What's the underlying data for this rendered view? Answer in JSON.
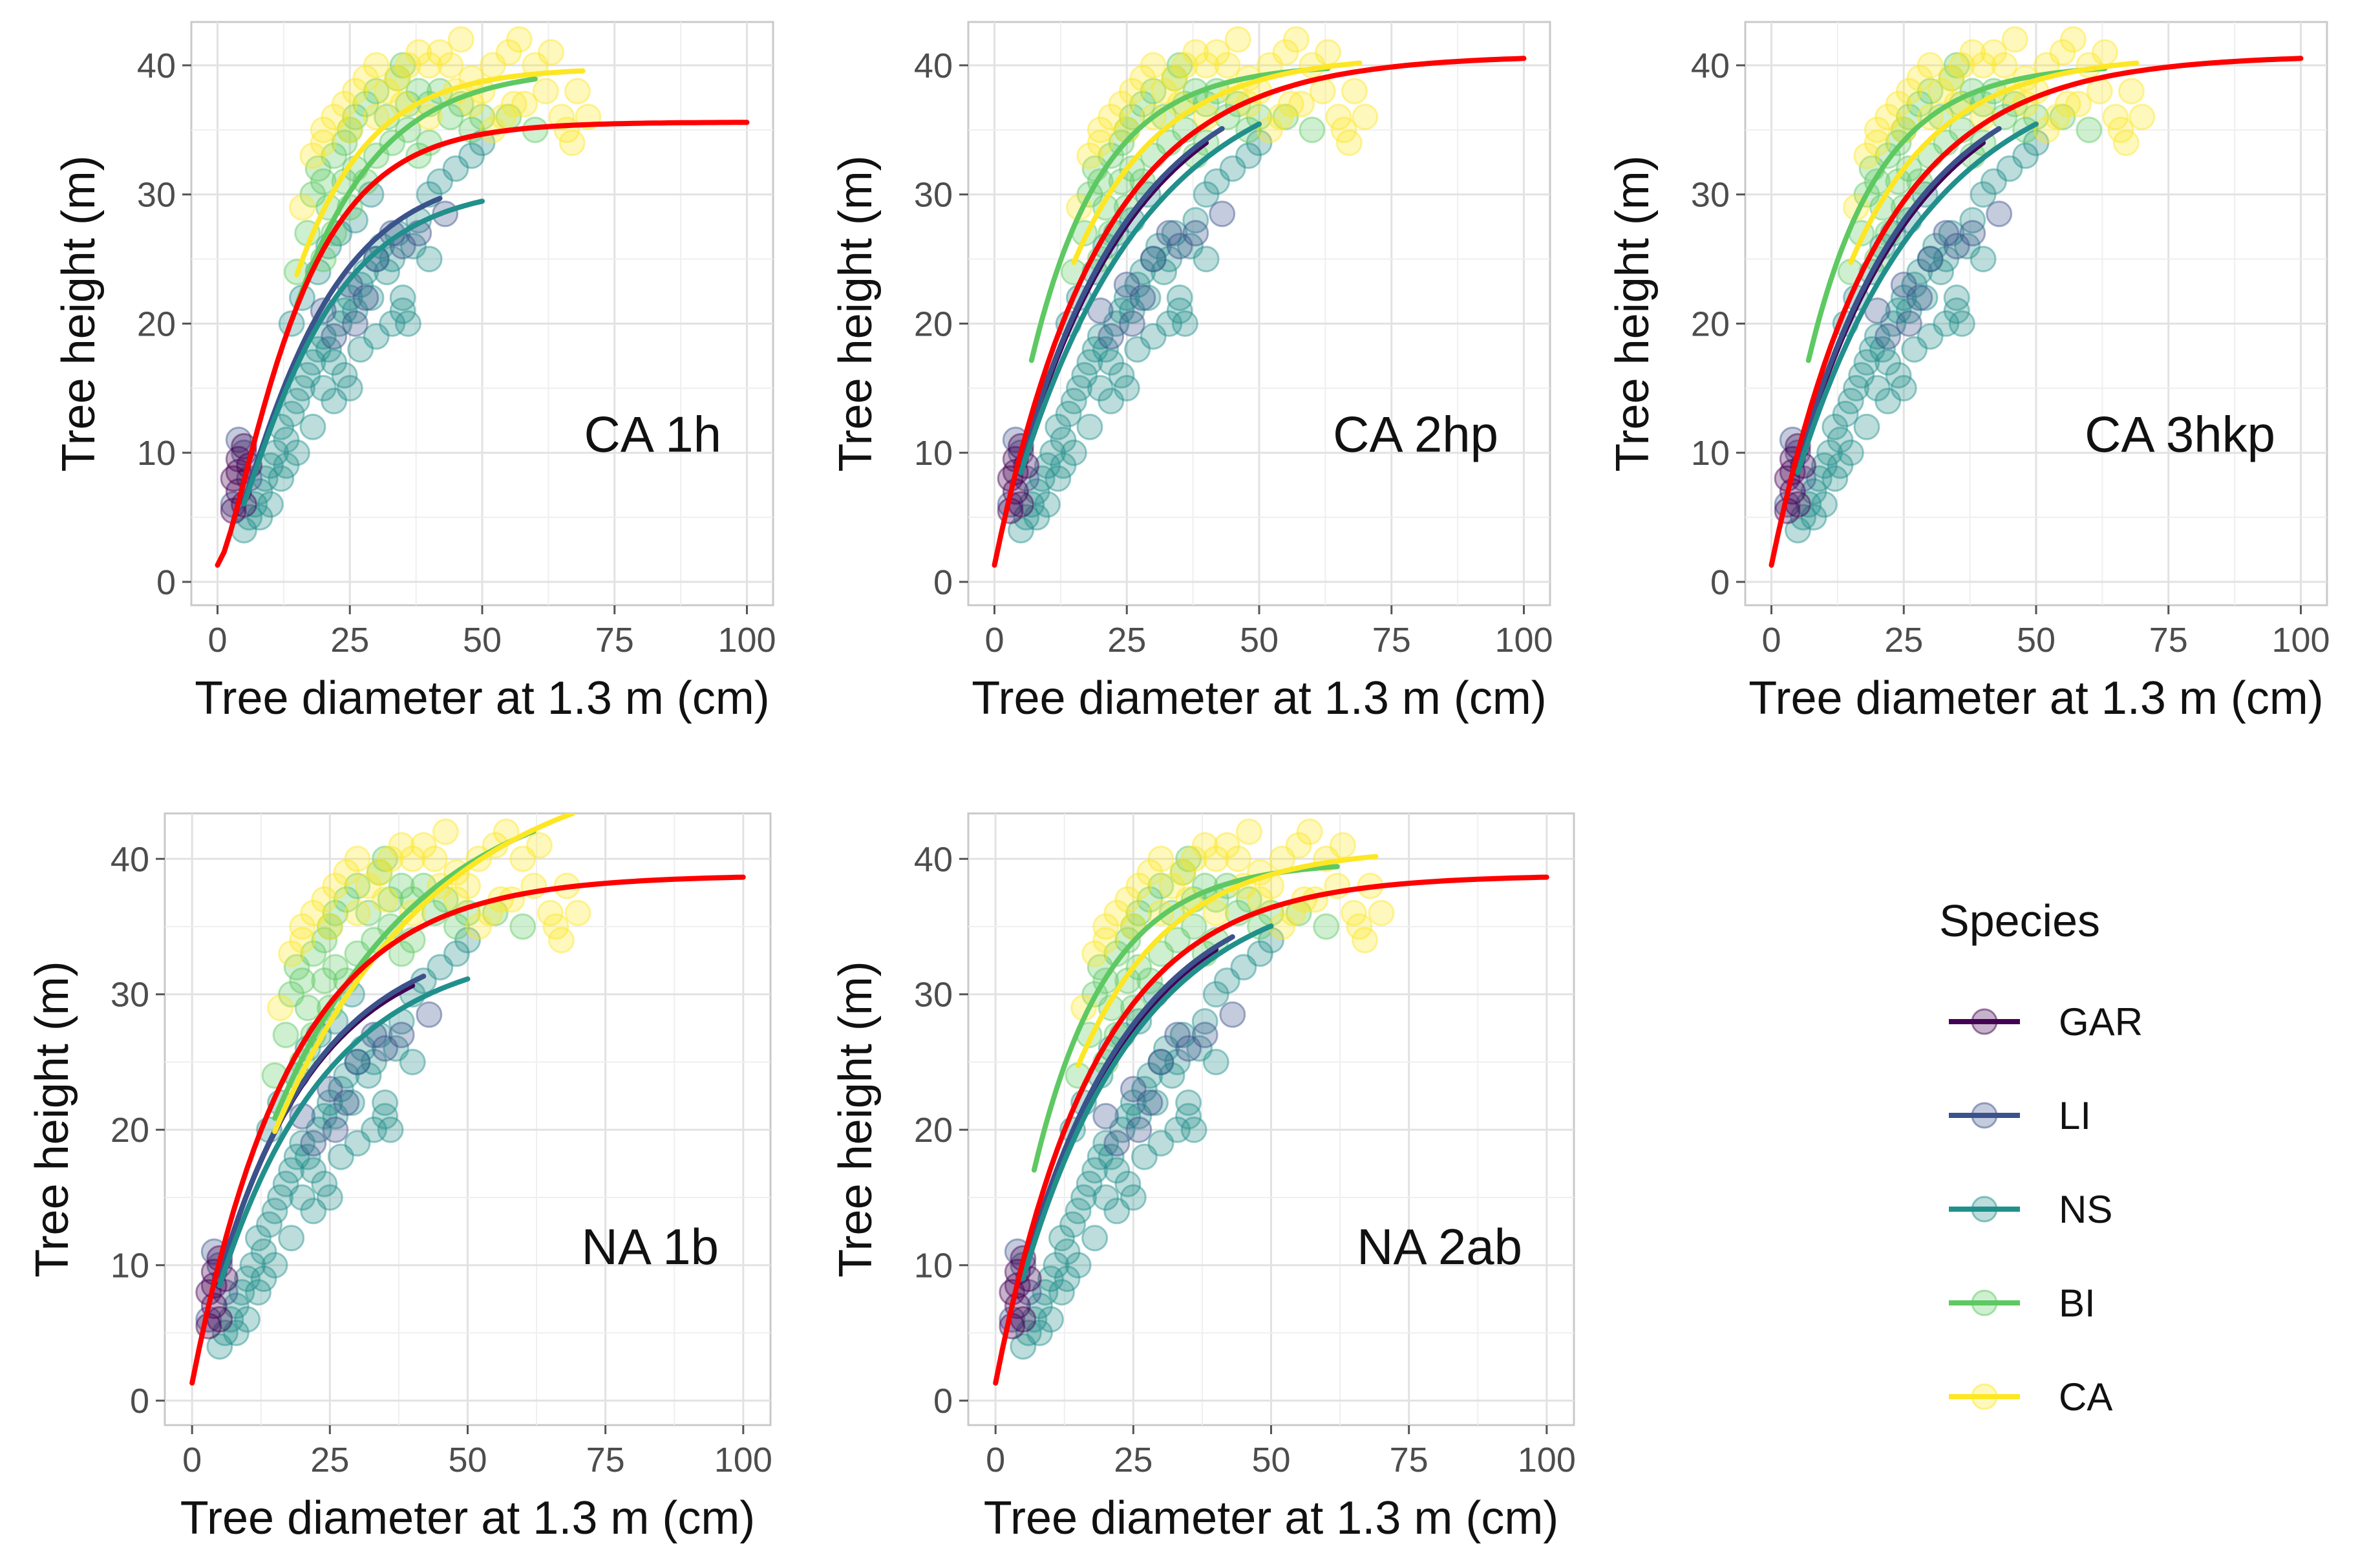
{
  "figure": {
    "xlabel": "Tree diameter at 1.3 m (cm)",
    "ylabel": "Tree height (m)",
    "x_ticks": [
      "0",
      "25",
      "50",
      "75",
      "100"
    ],
    "y_ticks": [
      "0",
      "10",
      "20",
      "30",
      "40"
    ],
    "legend_title": "Species"
  },
  "chart_data": {
    "type": "scatter",
    "xlim": [
      0,
      100
    ],
    "ylim": [
      0,
      42
    ],
    "x_tick_values": [
      0,
      25,
      50,
      75,
      100
    ],
    "y_tick_values": [
      0,
      10,
      20,
      30,
      40
    ],
    "grid": true,
    "legend_placement": "right",
    "species": [
      {
        "name": "GAR",
        "color": "#440154"
      },
      {
        "name": "LI",
        "color": "#3b528b"
      },
      {
        "name": "NS",
        "color": "#21908c"
      },
      {
        "name": "BI",
        "color": "#5ec962"
      },
      {
        "name": "CA",
        "color": "#fde725"
      }
    ],
    "overall_fit_color": "#ff0000",
    "observations": {
      "GAR": [
        [
          3,
          8
        ],
        [
          4,
          9.5
        ],
        [
          5,
          10.5
        ],
        [
          4,
          7
        ],
        [
          3,
          5.5
        ],
        [
          5,
          6
        ],
        [
          6,
          9
        ],
        [
          4,
          8.5
        ]
      ],
      "LI": [
        [
          4,
          11
        ],
        [
          5,
          10
        ],
        [
          3,
          6
        ],
        [
          6,
          8
        ],
        [
          25,
          23
        ],
        [
          28,
          22
        ],
        [
          30,
          25
        ],
        [
          33,
          27
        ],
        [
          38,
          27
        ],
        [
          43,
          28.5
        ],
        [
          20,
          21
        ],
        [
          22,
          19
        ],
        [
          26,
          20
        ],
        [
          35,
          26
        ]
      ],
      "NS": [
        [
          5,
          4
        ],
        [
          6,
          5
        ],
        [
          7,
          6
        ],
        [
          8,
          7
        ],
        [
          9,
          8
        ],
        [
          10,
          9
        ],
        [
          11,
          10
        ],
        [
          12,
          12
        ],
        [
          13,
          11
        ],
        [
          14,
          13
        ],
        [
          15,
          14
        ],
        [
          16,
          15
        ],
        [
          17,
          16
        ],
        [
          18,
          17
        ],
        [
          19,
          18
        ],
        [
          20,
          19
        ],
        [
          21,
          18
        ],
        [
          22,
          17
        ],
        [
          23,
          20
        ],
        [
          24,
          21
        ],
        [
          25,
          22
        ],
        [
          26,
          21
        ],
        [
          27,
          23
        ],
        [
          28,
          24
        ],
        [
          29,
          22
        ],
        [
          30,
          25
        ],
        [
          31,
          26
        ],
        [
          32,
          24
        ],
        [
          33,
          25
        ],
        [
          34,
          27
        ],
        [
          35,
          21
        ],
        [
          36,
          20
        ],
        [
          37,
          26
        ],
        [
          38,
          28
        ],
        [
          40,
          30
        ],
        [
          42,
          31
        ],
        [
          45,
          32
        ],
        [
          48,
          33
        ],
        [
          50,
          34
        ],
        [
          8,
          5
        ],
        [
          12,
          8
        ],
        [
          15,
          10
        ],
        [
          18,
          12
        ],
        [
          20,
          15
        ],
        [
          24,
          16
        ],
        [
          27,
          18
        ],
        [
          30,
          19
        ],
        [
          35,
          22
        ],
        [
          14,
          20
        ],
        [
          16,
          22
        ],
        [
          19,
          24
        ],
        [
          21,
          26
        ],
        [
          23,
          27
        ],
        [
          26,
          28
        ],
        [
          29,
          30
        ],
        [
          22,
          14
        ],
        [
          25,
          15
        ],
        [
          33,
          20
        ],
        [
          40,
          25
        ],
        [
          10,
          6
        ],
        [
          13,
          9
        ]
      ],
      "BI": [
        [
          15,
          24
        ],
        [
          17,
          27
        ],
        [
          18,
          30
        ],
        [
          19,
          32
        ],
        [
          20,
          31
        ],
        [
          22,
          33
        ],
        [
          24,
          34
        ],
        [
          25,
          35
        ],
        [
          26,
          36
        ],
        [
          28,
          37
        ],
        [
          30,
          38
        ],
        [
          32,
          36
        ],
        [
          34,
          39
        ],
        [
          36,
          37
        ],
        [
          38,
          38
        ],
        [
          40,
          37
        ],
        [
          42,
          38
        ],
        [
          44,
          36
        ],
        [
          46,
          37
        ],
        [
          48,
          35
        ],
        [
          50,
          36
        ],
        [
          20,
          25
        ],
        [
          22,
          27
        ],
        [
          25,
          29
        ],
        [
          28,
          31
        ],
        [
          30,
          33
        ],
        [
          33,
          34
        ],
        [
          36,
          35
        ],
        [
          38,
          33
        ],
        [
          40,
          34
        ],
        [
          26,
          32
        ],
        [
          24,
          31
        ],
        [
          21,
          29
        ],
        [
          35,
          40
        ],
        [
          60,
          35
        ],
        [
          55,
          36
        ]
      ],
      "CA": [
        [
          16,
          29
        ],
        [
          18,
          33
        ],
        [
          20,
          35
        ],
        [
          22,
          36
        ],
        [
          24,
          37
        ],
        [
          26,
          38
        ],
        [
          28,
          39
        ],
        [
          30,
          40
        ],
        [
          32,
          38
        ],
        [
          34,
          39
        ],
        [
          36,
          40
        ],
        [
          38,
          41
        ],
        [
          40,
          40
        ],
        [
          42,
          41
        ],
        [
          44,
          40
        ],
        [
          46,
          42
        ],
        [
          48,
          39
        ],
        [
          50,
          38
        ],
        [
          52,
          40
        ],
        [
          55,
          41
        ],
        [
          57,
          42
        ],
        [
          60,
          40
        ],
        [
          62,
          38
        ],
        [
          65,
          36
        ],
        [
          68,
          38
        ],
        [
          70,
          36
        ],
        [
          66,
          35
        ],
        [
          58,
          37
        ],
        [
          54,
          36
        ],
        [
          45,
          38
        ],
        [
          40,
          36
        ],
        [
          35,
          37
        ],
        [
          30,
          36
        ],
        [
          25,
          35
        ],
        [
          20,
          34
        ],
        [
          48,
          37
        ],
        [
          52,
          35
        ],
        [
          56,
          37
        ],
        [
          63,
          41
        ],
        [
          67,
          34
        ]
      ]
    },
    "panels": [
      {
        "label": "CA 1h",
        "overall": {
          "a": 34.3,
          "k": 0.08,
          "p": 1.5
        },
        "curves": [
          {
            "species": "GAR",
            "xrange": [
              3,
              7
            ],
            "a": 34.3,
            "k": 0.08,
            "p": 1.5
          },
          {
            "species": "LI",
            "xrange": [
              5,
              42
            ],
            "a": 30.8,
            "k": 0.07,
            "p": 1.5
          },
          {
            "species": "NS",
            "xrange": [
              5,
              50
            ],
            "a": 29.5,
            "k": 0.07,
            "p": 1.5
          },
          {
            "species": "BI",
            "xrange": [
              15,
              60
            ],
            "a": 38.5,
            "k": 0.07,
            "p": 1.5
          },
          {
            "species": "CA",
            "xrange": [
              15,
              69
            ],
            "a": 38.5,
            "k": 0.08,
            "p": 1.5
          }
        ]
      },
      {
        "label": "CA 2hp",
        "overall": {
          "a": 39.5,
          "k": 0.05,
          "p": 1.0
        },
        "curves": [
          {
            "species": "GAR",
            "xrange": [
              5,
              40
            ],
            "a": 39.5,
            "k": 0.044,
            "p": 1.0
          },
          {
            "species": "LI",
            "xrange": [
              5,
              43
            ],
            "a": 39.5,
            "k": 0.045,
            "p": 1.0
          },
          {
            "species": "NS",
            "xrange": [
              5,
              50
            ],
            "a": 39.5,
            "k": 0.04,
            "p": 1.0
          },
          {
            "species": "BI",
            "xrange": [
              7,
              63
            ],
            "a": 38.8,
            "k": 0.075,
            "p": 1.0
          },
          {
            "species": "CA",
            "xrange": [
              15,
              69
            ],
            "a": 39.5,
            "k": 0.06,
            "p": 1.0
          }
        ]
      },
      {
        "label": "CA 3hkp",
        "overall": {
          "a": 39.5,
          "k": 0.05,
          "p": 1.0
        },
        "curves": [
          {
            "species": "GAR",
            "xrange": [
              5,
              40
            ],
            "a": 39.5,
            "k": 0.044,
            "p": 1.0
          },
          {
            "species": "LI",
            "xrange": [
              5,
              43
            ],
            "a": 39.5,
            "k": 0.045,
            "p": 1.0
          },
          {
            "species": "NS",
            "xrange": [
              5,
              50
            ],
            "a": 39.5,
            "k": 0.04,
            "p": 1.0
          },
          {
            "species": "BI",
            "xrange": [
              7,
              63
            ],
            "a": 38.8,
            "k": 0.075,
            "p": 1.0
          },
          {
            "species": "CA",
            "xrange": [
              15,
              69
            ],
            "a": 39.5,
            "k": 0.06,
            "p": 1.0
          }
        ]
      },
      {
        "label": "NA 1b",
        "overall": {
          "a": 37.5,
          "k": 0.055,
          "p": 1.0
        },
        "curves": [
          {
            "species": "GAR",
            "xrange": [
              5,
              40
            ],
            "a": 33.0,
            "k": 0.055,
            "p": 1.0
          },
          {
            "species": "LI",
            "xrange": [
              5,
              42
            ],
            "a": 33.5,
            "k": 0.054,
            "p": 1.0
          },
          {
            "species": "NS",
            "xrange": [
              5,
              50
            ],
            "a": 32.5,
            "k": 0.05,
            "p": 1.0
          },
          {
            "species": "BI",
            "xrange": [
              15,
              62
            ],
            "a": 45.0,
            "k": 0.038,
            "p": 1.0
          },
          {
            "species": "CA",
            "xrange": [
              15,
              69
            ],
            "a": 46.5,
            "k": 0.034,
            "p": 1.0
          }
        ]
      },
      {
        "label": "NA 2ab",
        "overall": {
          "a": 37.5,
          "k": 0.055,
          "p": 1.0
        },
        "curves": [
          {
            "species": "GAR",
            "xrange": [
              5,
              40
            ],
            "a": 37.5,
            "k": 0.048,
            "p": 1.0
          },
          {
            "species": "LI",
            "xrange": [
              5,
              43
            ],
            "a": 37.5,
            "k": 0.049,
            "p": 1.0
          },
          {
            "species": "NS",
            "xrange": [
              5,
              50
            ],
            "a": 37.5,
            "k": 0.046,
            "p": 1.0
          },
          {
            "species": "BI",
            "xrange": [
              7,
              62
            ],
            "a": 38.5,
            "k": 0.075,
            "p": 1.0
          },
          {
            "species": "CA",
            "xrange": [
              15,
              69
            ],
            "a": 39.5,
            "k": 0.06,
            "p": 1.0
          }
        ]
      }
    ]
  }
}
